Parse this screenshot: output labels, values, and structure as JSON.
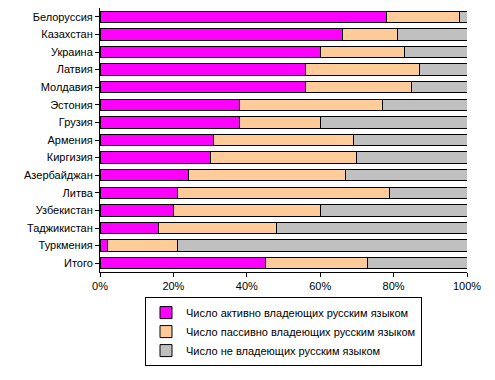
{
  "chart_data": {
    "type": "bar",
    "orientation": "horizontal",
    "stacked": true,
    "grid": false,
    "legend": "bottom",
    "categories": [
      "Белоруссия",
      "Казахстан",
      "Украина",
      "Латвия",
      "Молдавия",
      "Эстония",
      "Грузия",
      "Армения",
      "Киргизия",
      "Азербайджан",
      "Литва",
      "Узбекистан",
      "Таджикистан",
      "Туркмения",
      "Итого"
    ],
    "series": [
      {
        "name": "Число активно владеющих русским языком",
        "color": "#ff00ff",
        "values": [
          78,
          66,
          60,
          56,
          56,
          38,
          38,
          31,
          30,
          24,
          21,
          20,
          16,
          2,
          45
        ]
      },
      {
        "name": "Число пассивно владеющих русским языком",
        "color": "#ffcc99",
        "values": [
          20,
          15,
          23,
          31,
          29,
          39,
          22,
          38,
          40,
          43,
          58,
          40,
          32,
          19,
          28
        ]
      },
      {
        "name": "Число не владеющих русским языком",
        "color": "#c0c0c0",
        "values": [
          2,
          19,
          17,
          13,
          15,
          23,
          40,
          31,
          30,
          33,
          21,
          40,
          52,
          79,
          27
        ]
      }
    ],
    "xlim": [
      0,
      100
    ],
    "xticks": [
      {
        "value": 0,
        "label": "0%"
      },
      {
        "value": 20,
        "label": "20%"
      },
      {
        "value": 40,
        "label": "40%"
      },
      {
        "value": 60,
        "label": "60%"
      },
      {
        "value": 80,
        "label": "80%"
      },
      {
        "value": 100,
        "label": "100%"
      }
    ]
  }
}
